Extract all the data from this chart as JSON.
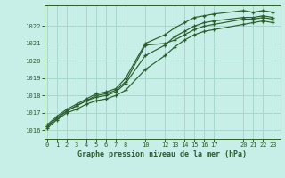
{
  "title": "Graphe pression niveau de la mer (hPa)",
  "bg_color": "#c8eee8",
  "grid_color": "#a8d8cc",
  "line_color": "#2a5e2a",
  "ylim": [
    1015.5,
    1023.2
  ],
  "yticks": [
    1016,
    1017,
    1018,
    1019,
    1020,
    1021,
    1022
  ],
  "xtick_positions": [
    0,
    1,
    2,
    3,
    4,
    5,
    6,
    7,
    8,
    10,
    12,
    13,
    14,
    15,
    16,
    17,
    20,
    21,
    22,
    23
  ],
  "xtick_labels": [
    "0",
    "1",
    "2",
    "3",
    "4",
    "5",
    "6",
    "7",
    "8",
    "10",
    "12",
    "13",
    "14",
    "15",
    "16",
    "17",
    "20",
    "21",
    "22",
    "23"
  ],
  "xlim": [
    -0.3,
    23.8
  ],
  "lines": [
    {
      "x": [
        0,
        1,
        2,
        3,
        4,
        5,
        6,
        7,
        8,
        10,
        12,
        13,
        14,
        15,
        16,
        17,
        20,
        21,
        22,
        23
      ],
      "y": [
        1016.3,
        1016.8,
        1017.2,
        1017.5,
        1017.8,
        1018.1,
        1018.2,
        1018.4,
        1019.0,
        1021.0,
        1021.5,
        1021.9,
        1022.2,
        1022.5,
        1022.6,
        1022.7,
        1022.9,
        1022.8,
        1022.9,
        1022.8
      ]
    },
    {
      "x": [
        0,
        1,
        2,
        3,
        4,
        5,
        6,
        7,
        8,
        10,
        12,
        13,
        14,
        15,
        16,
        17,
        20,
        21,
        22,
        23
      ],
      "y": [
        1016.2,
        1016.7,
        1017.1,
        1017.4,
        1017.7,
        1018.0,
        1018.1,
        1018.3,
        1018.8,
        1020.9,
        1021.0,
        1021.2,
        1021.5,
        1021.8,
        1022.0,
        1022.1,
        1022.4,
        1022.4,
        1022.5,
        1022.4
      ]
    },
    {
      "x": [
        0,
        1,
        2,
        3,
        4,
        5,
        6,
        7,
        8,
        10,
        12,
        13,
        14,
        15,
        16,
        17,
        20,
        21,
        22,
        23
      ],
      "y": [
        1016.2,
        1016.7,
        1017.1,
        1017.4,
        1017.7,
        1017.9,
        1018.0,
        1018.2,
        1018.7,
        1020.3,
        1020.9,
        1021.4,
        1021.7,
        1022.0,
        1022.2,
        1022.3,
        1022.5,
        1022.5,
        1022.6,
        1022.5
      ]
    },
    {
      "x": [
        0,
        1,
        2,
        3,
        4,
        5,
        6,
        7,
        8,
        10,
        12,
        13,
        14,
        15,
        16,
        17,
        20,
        21,
        22,
        23
      ],
      "y": [
        1016.1,
        1016.6,
        1017.0,
        1017.2,
        1017.5,
        1017.7,
        1017.8,
        1018.0,
        1018.3,
        1019.5,
        1020.3,
        1020.8,
        1021.2,
        1021.5,
        1021.7,
        1021.8,
        1022.1,
        1022.2,
        1022.3,
        1022.2
      ]
    }
  ]
}
